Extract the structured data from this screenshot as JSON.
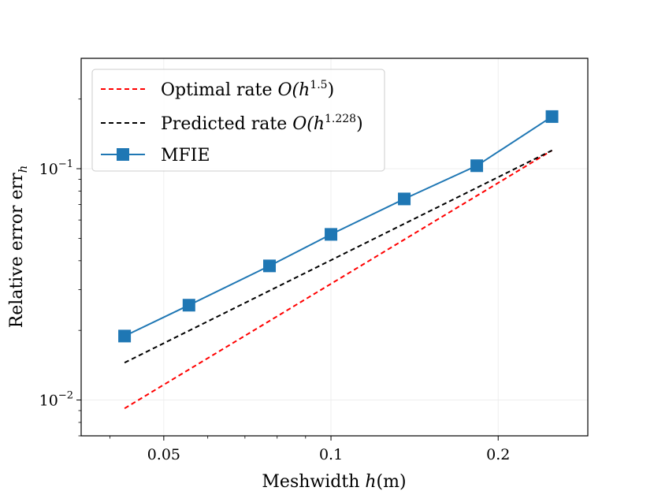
{
  "chart_data": {
    "type": "line",
    "x_scale": "log",
    "y_scale": "log",
    "xlabel": {
      "text": "Meshwidth ",
      "var": "h",
      "unit": "(m)"
    },
    "ylabel": {
      "text": "Relative error err",
      "sub": "h"
    },
    "xlim": [
      0.0355,
      0.29
    ],
    "ylim": [
      0.007,
      0.3
    ],
    "x_ticks": [
      {
        "value": 0.05,
        "label": "0.05"
      },
      {
        "value": 0.1,
        "label": "0.1"
      },
      {
        "value": 0.2,
        "label": "0.2"
      }
    ],
    "y_ticks": [
      {
        "value": 0.1,
        "base": "10",
        "exp": "−1"
      },
      {
        "value": 0.01,
        "base": "10",
        "exp": "−2"
      }
    ],
    "grid": true,
    "legend_position": "top-left",
    "series": [
      {
        "name": "Optimal rate",
        "legend_prefix": "Optimal rate ",
        "legend_math": "O(h",
        "legend_exp": "1.5",
        "legend_suffix": ")",
        "style": "dashed",
        "color": "#ff0000",
        "marker": "none",
        "x": [
          0.0425,
          0.25
        ],
        "y": [
          0.0092,
          0.12
        ]
      },
      {
        "name": "Predicted rate",
        "legend_prefix": "Predicted rate ",
        "legend_math": "O(h",
        "legend_exp": "1.228",
        "legend_suffix": ")",
        "style": "dashed",
        "color": "#000000",
        "marker": "none",
        "x": [
          0.0425,
          0.25
        ],
        "y": [
          0.0145,
          0.12
        ]
      },
      {
        "name": "MFIE",
        "legend_prefix": "MFIE",
        "legend_math": "",
        "legend_exp": "",
        "legend_suffix": "",
        "style": "solid",
        "color": "#1f77b4",
        "marker": "square",
        "x": [
          0.0425,
          0.0555,
          0.0775,
          0.1,
          0.1355,
          0.183,
          0.25
        ],
        "y": [
          0.0189,
          0.0257,
          0.038,
          0.052,
          0.074,
          0.103,
          0.168
        ]
      }
    ]
  }
}
